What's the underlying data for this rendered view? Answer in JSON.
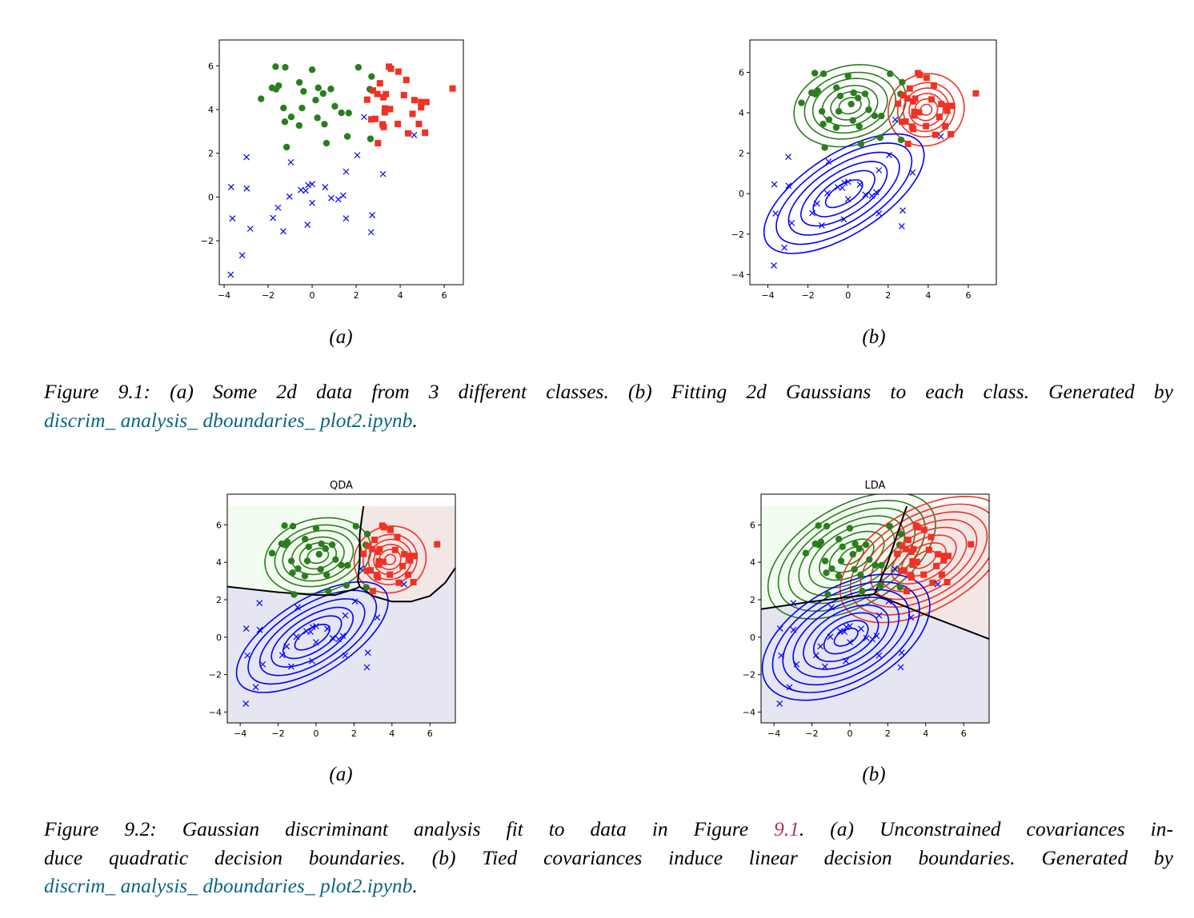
{
  "figure1": {
    "sub_a": "(a)",
    "sub_b": "(b)",
    "caption_line1": "Figure 9.1: (a) Some 2d data from 3 different classes. (b) Fitting 2d Gaussians to each class. Generated by",
    "caption_link": "discrim_ analysis_ dboundaries_ plot2.ipynb",
    "caption_end": "."
  },
  "figure2": {
    "sub_a": "(a)",
    "sub_b": "(b)",
    "caption_line1_pre": "Figure 9.2: Gaussian discriminant analysis fit to data in Figure ",
    "caption_ref": "9.1",
    "caption_line1_post": ". (a) Unconstrained covariances in-",
    "caption_line2": "duce quadratic decision boundaries. (b) Tied covariances induce linear decision boundaries. Generated by",
    "caption_link": "discrim_ analysis_ dboundaries_ plot2.ipynb",
    "caption_end": "."
  },
  "chart_data": {
    "type": "scatter",
    "colors": {
      "green": "#2b7d1f",
      "red": "#ee3224",
      "blue": "#0000ff",
      "green_region": "#f3fcf0",
      "red_region": "#f3e7e6",
      "blue_region": "#e5e6f1",
      "boundary": "#000000"
    },
    "series": [
      {
        "class": "green",
        "marker": "circle",
        "points": [
          [
            -1.66,
            5.96
          ],
          [
            -1.22,
            5.93
          ],
          [
            0,
            5.82
          ],
          [
            2.1,
            5.93
          ],
          [
            2.7,
            5.51
          ],
          [
            -1.82,
            4.99
          ],
          [
            -1.64,
            4.93
          ],
          [
            -1.52,
            5.09
          ],
          [
            -2.32,
            4.49
          ],
          [
            -0.58,
            5.24
          ],
          [
            -0.39,
            4.83
          ],
          [
            0.28,
            4.99
          ],
          [
            0.5,
            4.73
          ],
          [
            0.85,
            4.94
          ],
          [
            0.16,
            4.43
          ],
          [
            2.62,
            4.93
          ],
          [
            -1.3,
            4.07
          ],
          [
            -0.46,
            4.07
          ],
          [
            1.03,
            4.15
          ],
          [
            1.33,
            3.85
          ],
          [
            1.66,
            3.84
          ],
          [
            -0.95,
            3.66
          ],
          [
            -1.24,
            3.44
          ],
          [
            -0.59,
            3.27
          ],
          [
            0.24,
            3.62
          ],
          [
            0.56,
            3.33
          ],
          [
            1.6,
            2.77
          ],
          [
            2.65,
            2.66
          ],
          [
            0.65,
            2.46
          ],
          [
            -1.16,
            2.28
          ]
        ]
      },
      {
        "class": "red",
        "marker": "square",
        "points": [
          [
            3.49,
            5.96
          ],
          [
            3.58,
            5.87
          ],
          [
            3.92,
            5.73
          ],
          [
            4.28,
            5.35
          ],
          [
            6.38,
            4.96
          ],
          [
            3.08,
            5.2
          ],
          [
            2.76,
            4.87
          ],
          [
            2.96,
            4.71
          ],
          [
            3.24,
            4.56
          ],
          [
            3.35,
            4.7
          ],
          [
            2.5,
            4.45
          ],
          [
            4.17,
            4.66
          ],
          [
            4.65,
            4.43
          ],
          [
            4.95,
            4.34
          ],
          [
            5.19,
            4.34
          ],
          [
            4.95,
            4.1
          ],
          [
            3.31,
            4.05
          ],
          [
            3.54,
            4.02
          ],
          [
            3.3,
            3.87
          ],
          [
            4.56,
            3.8
          ],
          [
            2.69,
            3.55
          ],
          [
            2.87,
            3.57
          ],
          [
            3.2,
            3.32
          ],
          [
            3.25,
            3.2
          ],
          [
            3.89,
            3.34
          ],
          [
            4.85,
            3.34
          ],
          [
            4.36,
            2.91
          ],
          [
            5.13,
            2.94
          ],
          [
            2.99,
            2.46
          ]
        ]
      },
      {
        "class": "blue",
        "marker": "x",
        "points": [
          [
            2.36,
            3.66
          ],
          [
            4.63,
            2.83
          ],
          [
            -2.98,
            1.82
          ],
          [
            -0.97,
            1.59
          ],
          [
            2.05,
            1.91
          ],
          [
            1.54,
            1.16
          ],
          [
            3.22,
            1.05
          ],
          [
            -3.68,
            0.46
          ],
          [
            -2.97,
            0.39
          ],
          [
            -1.03,
            0.02
          ],
          [
            -0.51,
            0.32
          ],
          [
            -0.29,
            0.29
          ],
          [
            -0.18,
            0.54
          ],
          [
            0,
            0.59
          ],
          [
            0.59,
            0.45
          ],
          [
            0,
            -0.27
          ],
          [
            0.87,
            -0.05
          ],
          [
            1.19,
            -0.11
          ],
          [
            1.41,
            0.07
          ],
          [
            -1.55,
            -0.49
          ],
          [
            -3.62,
            -0.98
          ],
          [
            -1.78,
            -0.96
          ],
          [
            1.54,
            -0.98
          ],
          [
            2.73,
            -0.83
          ],
          [
            -2.81,
            -1.45
          ],
          [
            -1.31,
            -1.57
          ],
          [
            -0.21,
            -1.27
          ],
          [
            2.68,
            -1.61
          ],
          [
            -3.18,
            -2.67
          ],
          [
            -3.7,
            -3.55
          ]
        ]
      }
    ],
    "gaussians_full": [
      {
        "class": "green",
        "mean": [
          0.1,
          4.35
        ],
        "cov": [
          [
            1.9,
            0.25
          ],
          [
            0.25,
            1.0
          ]
        ],
        "levels": [
          0.4,
          0.7,
          1.0,
          1.35,
          1.65,
          2.03
        ]
      },
      {
        "class": "red",
        "mean": [
          3.9,
          4.15
        ],
        "cov": [
          [
            0.9,
            0.05
          ],
          [
            0.05,
            0.8
          ]
        ],
        "levels": [
          0.3,
          0.6,
          0.9,
          1.2,
          1.5,
          2.0
        ]
      },
      {
        "class": "blue",
        "mean": [
          -0.2,
          0.0
        ],
        "cov": [
          [
            4.2,
            2.0
          ],
          [
            2.0,
            2.3
          ]
        ],
        "levels": [
          0.45,
          0.75,
          1.05,
          1.35,
          1.65,
          1.95
        ]
      }
    ],
    "gaussians_tied": [
      {
        "class": "green",
        "mean": [
          0.1,
          4.35
        ],
        "cov": [
          [
            2.4,
            0.9
          ],
          [
            0.9,
            1.4
          ]
        ],
        "levels": [
          0.4,
          0.75,
          1.1,
          1.45,
          1.8,
          2.15,
          2.5,
          2.85
        ]
      },
      {
        "class": "red",
        "mean": [
          3.9,
          4.15
        ],
        "cov": [
          [
            2.4,
            0.9
          ],
          [
            0.9,
            1.4
          ]
        ],
        "levels": [
          0.4,
          0.75,
          1.1,
          1.45,
          1.8,
          2.15,
          2.5,
          2.85
        ]
      },
      {
        "class": "blue",
        "mean": [
          -0.2,
          0.0
        ],
        "cov": [
          [
            2.4,
            0.9
          ],
          [
            0.9,
            1.4
          ]
        ],
        "levels": [
          0.4,
          0.75,
          1.1,
          1.45,
          1.8,
          2.15,
          2.5,
          2.85
        ]
      }
    ],
    "panels": [
      {
        "id": "fig1a",
        "title": "",
        "xlim": [
          -4.22,
          6.87
        ],
        "ylim": [
          -4.01,
          7.18
        ],
        "xticks": [
          -4,
          -2,
          0,
          2,
          4,
          6
        ],
        "yticks": [
          -2,
          0,
          2,
          4,
          6
        ],
        "contours": "",
        "regions": null
      },
      {
        "id": "fig1b",
        "title": "",
        "xlim": [
          -4.9,
          7.4
        ],
        "ylim": [
          -4.5,
          7.6
        ],
        "xticks": [
          -4,
          -2,
          0,
          2,
          4,
          6
        ],
        "yticks": [
          -4,
          -2,
          0,
          2,
          4,
          6
        ],
        "contours": "full",
        "regions": null
      },
      {
        "id": "fig2a",
        "title": "QDA",
        "xlim": [
          -4.68,
          7.34
        ],
        "ylim": [
          -4.58,
          7.64
        ],
        "xticks": [
          -4,
          -2,
          0,
          2,
          4,
          6
        ],
        "yticks": [
          -4,
          -2,
          0,
          2,
          4,
          6
        ],
        "contours": "full",
        "regions": {
          "top": 7,
          "green": [
            [
              -4.68,
              7
            ],
            [
              2.5,
              7
            ],
            [
              2.4,
              6.3
            ],
            [
              2.3,
              5.5
            ],
            [
              2.3,
              4
            ],
            [
              2.2,
              3.0
            ],
            [
              2.3,
              2.7
            ],
            [
              2.1,
              2.6
            ],
            [
              1,
              2.25
            ],
            [
              0,
              2.25
            ],
            [
              -2,
              2.4
            ],
            [
              -4.68,
              2.7
            ]
          ],
          "red": [
            [
              2.5,
              7
            ],
            [
              7.34,
              7
            ],
            [
              7.34,
              3.7
            ],
            [
              6.8,
              2.9
            ],
            [
              6,
              2.2
            ],
            [
              5,
              1.9
            ],
            [
              4,
              1.9
            ],
            [
              3,
              2.2
            ],
            [
              2.3,
              2.7
            ],
            [
              2.2,
              3.0
            ],
            [
              2.3,
              4
            ],
            [
              2.3,
              5.5
            ],
            [
              2.4,
              6.3
            ]
          ],
          "boundaries": [
            [
              [
                -4.68,
                2.7
              ],
              [
                -2,
                2.4
              ],
              [
                0,
                2.25
              ],
              [
                1,
                2.25
              ],
              [
                2.1,
                2.6
              ],
              [
                2.3,
                2.7
              ]
            ],
            [
              [
                2.3,
                2.7
              ],
              [
                2.2,
                3.0
              ],
              [
                2.3,
                4
              ],
              [
                2.3,
                5.5
              ],
              [
                2.4,
                6.3
              ],
              [
                2.5,
                7
              ]
            ],
            [
              [
                2.3,
                2.7
              ],
              [
                3,
                2.2
              ],
              [
                4,
                1.9
              ],
              [
                5,
                1.9
              ],
              [
                6,
                2.2
              ],
              [
                6.8,
                2.9
              ],
              [
                7.34,
                3.7
              ]
            ]
          ]
        }
      },
      {
        "id": "fig2b",
        "title": "LDA",
        "xlim": [
          -4.68,
          7.34
        ],
        "ylim": [
          -4.58,
          7.64
        ],
        "xticks": [
          -4,
          -2,
          0,
          2,
          4,
          6
        ],
        "yticks": [
          -4,
          -2,
          0,
          2,
          4,
          6
        ],
        "contours": "tied",
        "regions": {
          "top": 7,
          "green": [
            [
              -4.68,
              7
            ],
            [
              3.0,
              7
            ],
            [
              2.5,
              5.5
            ],
            [
              2,
              4
            ],
            [
              1.3,
              2.3
            ],
            [
              0,
              2.15
            ],
            [
              -2,
              1.9
            ],
            [
              -4.68,
              1.5
            ]
          ],
          "red": [
            [
              3.0,
              7
            ],
            [
              7.34,
              7
            ],
            [
              7.34,
              -0.1
            ],
            [
              4,
              1.2
            ],
            [
              1.3,
              2.3
            ],
            [
              2,
              4
            ],
            [
              2.5,
              5.5
            ]
          ],
          "boundaries": [
            [
              [
                -4.68,
                1.5
              ],
              [
                -2,
                1.9
              ],
              [
                0,
                2.15
              ],
              [
                1.3,
                2.3
              ]
            ],
            [
              [
                1.3,
                2.3
              ],
              [
                2,
                4
              ],
              [
                2.5,
                5.5
              ],
              [
                3.0,
                7
              ]
            ],
            [
              [
                1.3,
                2.3
              ],
              [
                4,
                1.2
              ],
              [
                7.34,
                -0.1
              ]
            ]
          ]
        }
      }
    ]
  }
}
